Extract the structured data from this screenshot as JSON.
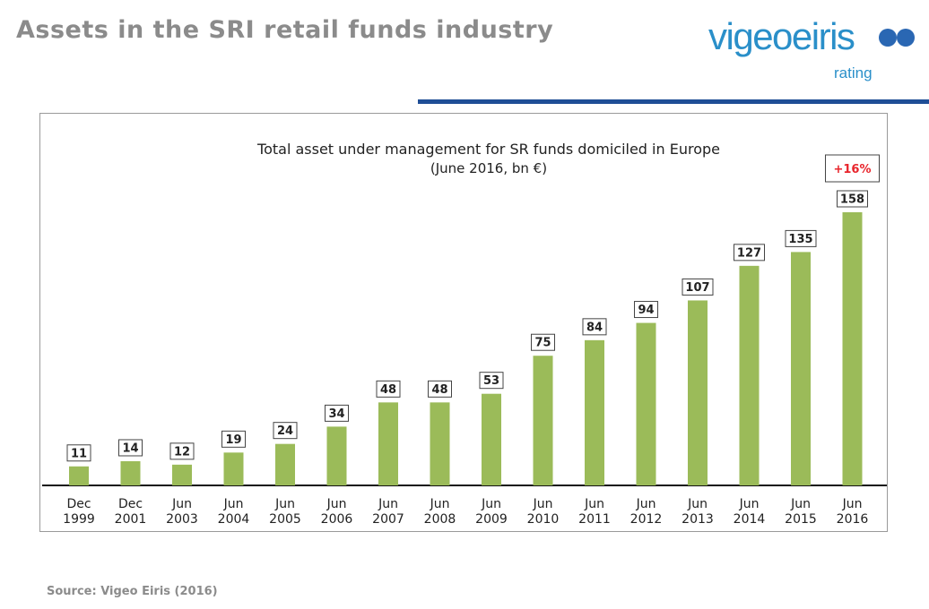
{
  "header": {
    "title": "Assets in the SRI retail funds industry",
    "logo": {
      "wordmark": "vigeoeiris",
      "subtext": "rating",
      "accent_color": "#2a8fc9",
      "rule_color": "#1f4e96"
    }
  },
  "chart_data": {
    "type": "bar",
    "title": "Total asset under management for SR funds domiciled in Europe",
    "subtitle": "(June 2016, bn €)",
    "categories": [
      [
        "Dec",
        "1999"
      ],
      [
        "Dec",
        "2001"
      ],
      [
        "Jun",
        "2003"
      ],
      [
        "Jun",
        "2004"
      ],
      [
        "Jun",
        "2005"
      ],
      [
        "Jun",
        "2006"
      ],
      [
        "Jun",
        "2007"
      ],
      [
        "Jun",
        "2008"
      ],
      [
        "Jun",
        "2009"
      ],
      [
        "Jun",
        "2010"
      ],
      [
        "Jun",
        "2011"
      ],
      [
        "Jun",
        "2012"
      ],
      [
        "Jun",
        "2013"
      ],
      [
        "Jun",
        "2014"
      ],
      [
        "Jun",
        "2015"
      ],
      [
        "Jun",
        "2016"
      ]
    ],
    "values": [
      11,
      14,
      12,
      19,
      24,
      34,
      48,
      48,
      53,
      75,
      84,
      94,
      107,
      127,
      135,
      158
    ],
    "bar_color": "#9bbb59",
    "annotation": {
      "text": "+16%",
      "category_index": 15,
      "color": "#e8242b"
    },
    "ylim": [
      0,
      158
    ],
    "grid": false,
    "xlabel": "",
    "ylabel": ""
  },
  "footer": {
    "source": "Source: Vigeo Eiris (2016)"
  }
}
